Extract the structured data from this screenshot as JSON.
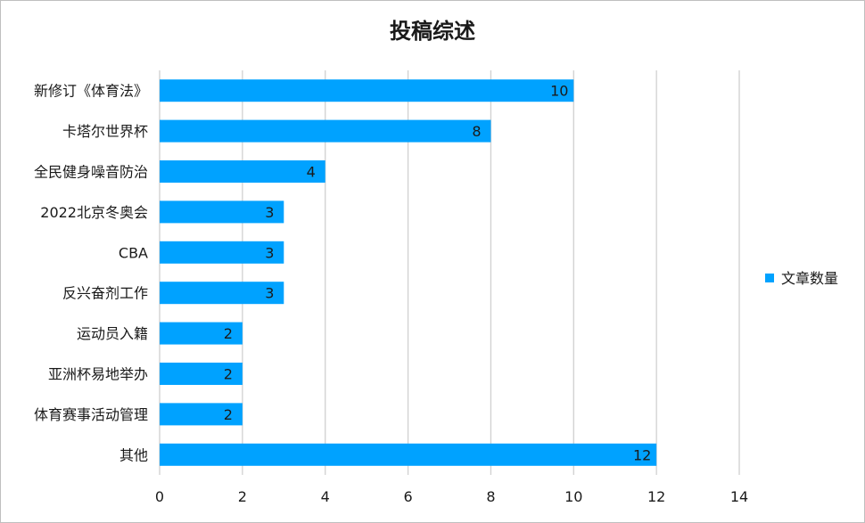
{
  "chart_data": {
    "type": "bar",
    "orientation": "horizontal",
    "title": "投稿综述",
    "categories": [
      "新修订《体育法》",
      "卡塔尔世界杯",
      "全民健身噪音防治",
      "2022北京冬奥会",
      "CBA",
      "反兴奋剂工作",
      "运动员入籍",
      "亚洲杯易地举办",
      "体育赛事活动管理",
      "其他"
    ],
    "series": [
      {
        "name": "文章数量",
        "values": [
          10,
          8,
          4,
          3,
          3,
          3,
          2,
          2,
          2,
          12
        ],
        "color": "#00a2ff"
      }
    ],
    "xlim": [
      0,
      14
    ],
    "xticks": [
      0,
      2,
      4,
      6,
      8,
      10,
      12,
      14
    ],
    "grid": "vertical",
    "legend": "right",
    "data_labels": true
  }
}
